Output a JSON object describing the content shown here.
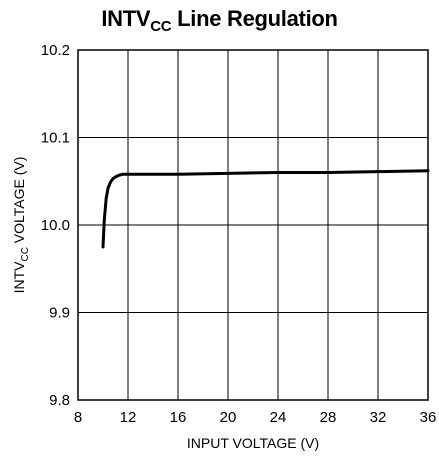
{
  "chart_data": {
    "type": "line",
    "title": {
      "main": "INTV",
      "sub": "CC",
      "rest": " Line Regulation"
    },
    "xlabel": "INPUT VOLTAGE (V)",
    "ylabel": {
      "main": "INTV",
      "sub": "CC",
      "rest": " VOLTAGE (V)"
    },
    "xlim": [
      8,
      36
    ],
    "ylim": [
      9.8,
      10.2
    ],
    "x_ticks": [
      "8",
      "12",
      "16",
      "20",
      "24",
      "28",
      "32",
      "36"
    ],
    "y_ticks": [
      "9.8",
      "9.9",
      "10.0",
      "10.1",
      "10.2"
    ],
    "grid": true,
    "series": [
      {
        "x": [
          10.0,
          10.1,
          10.25,
          10.4,
          10.6,
          10.8,
          11.0,
          11.3,
          11.6,
          12.0,
          14,
          16,
          20,
          24,
          28,
          32,
          36
        ],
        "y": [
          9.975,
          10.005,
          10.03,
          10.042,
          10.049,
          10.053,
          10.055,
          10.057,
          10.058,
          10.058,
          10.058,
          10.058,
          10.059,
          10.06,
          10.06,
          10.061,
          10.062
        ]
      }
    ],
    "line_color": "#000000"
  }
}
